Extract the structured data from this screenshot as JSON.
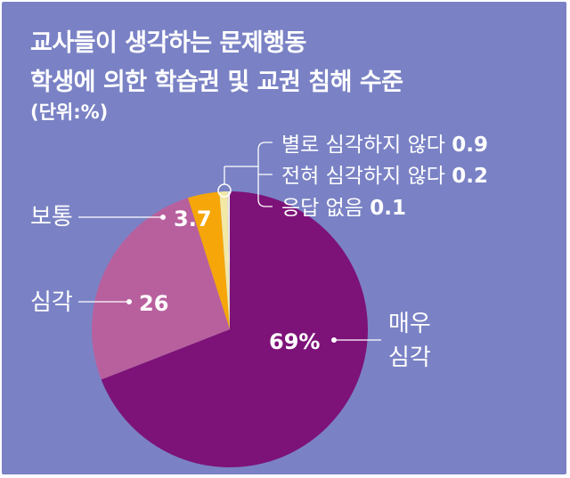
{
  "title_line1": "교사들이 생각하는 문제행동",
  "title_line2": "학생에 의한 학습권 및 교권 침해 수준",
  "unit": "(단위:%)",
  "chart_data": {
    "type": "pie",
    "title": "교사들이 생각하는 문제행동 학생에 의한 학습권 및 교권 침해 수준",
    "unit": "%",
    "slices": [
      {
        "label": "매우 심각",
        "label_lines": [
          "매우",
          "심각"
        ],
        "value": 69,
        "value_text": "69%",
        "color": "#7d1278"
      },
      {
        "label": "심각",
        "label_lines": [
          "심각"
        ],
        "value": 26,
        "value_text": "26",
        "color": "#b8609e"
      },
      {
        "label": "보통",
        "label_lines": [
          "보통"
        ],
        "value": 3.7,
        "value_text": "3.7",
        "color": "#f6a608"
      },
      {
        "label": "별로 심각하지 않다",
        "label_lines": [
          "별로 심각하지 않다"
        ],
        "value": 0.9,
        "value_text": "0.9",
        "color": "#f3e9a6"
      },
      {
        "label": "전혀 심각하지 않다",
        "label_lines": [
          "전혀 심각하지 않다"
        ],
        "value": 0.2,
        "value_text": "0.2",
        "color": "#e9e4d8"
      },
      {
        "label": "응답 없음",
        "label_lines": [
          "응답 없음"
        ],
        "value": 0.1,
        "value_text": "0.1",
        "color": "#ffffff"
      }
    ]
  }
}
